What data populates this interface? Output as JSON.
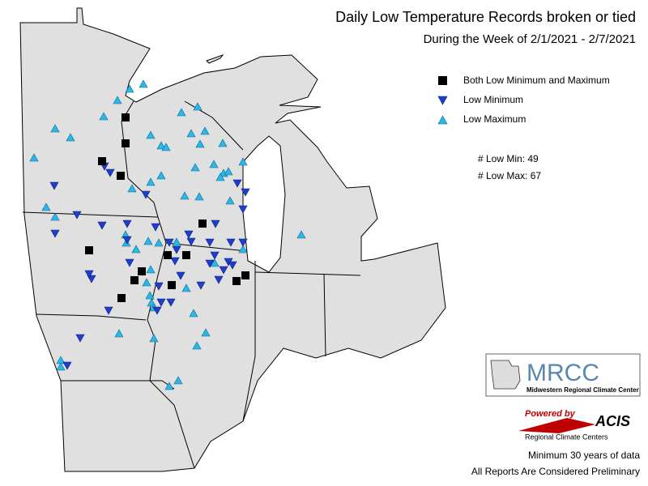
{
  "header": {
    "title": "Daily Low Temperature Records broken or tied",
    "subtitle": "During the Week of 2/1/2021 - 2/7/2021"
  },
  "legend": {
    "items": [
      "Both Low Minimum and Maximum",
      "Low Minimum",
      "Low Maximum"
    ]
  },
  "stats": [
    {
      "label": "# Low Min:",
      "value": 49
    },
    {
      "label": "# Low Max:",
      "value": 67
    }
  ],
  "logos": {
    "mrcc": "MRCC",
    "mrcc_name": "Midwestern Regional Climate Center",
    "powered_by": "Powered by",
    "acis": "ACIS",
    "acis_name": "Regional Climate Centers"
  },
  "notes": [
    "Minimum 30 years of data",
    "All Reports Are Considered Preliminary"
  ]
}
